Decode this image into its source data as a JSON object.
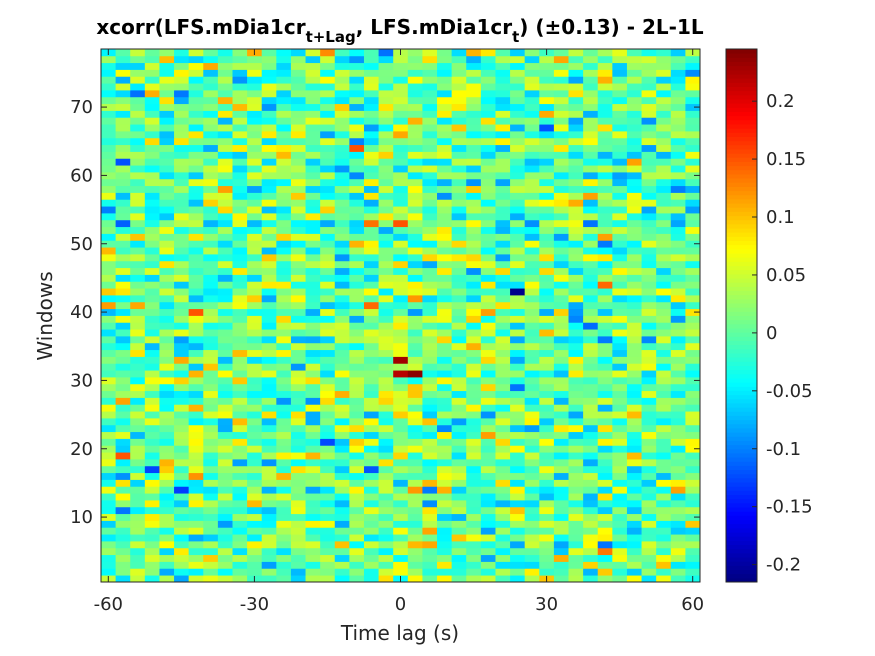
{
  "chart_data": {
    "type": "heatmap",
    "title": {
      "part1": "xcorr(LFS.mDia1cr",
      "sub1": "t+Lag",
      "part2": ", LFS.mDia1cr",
      "sub2": "t",
      "part3": ")  (±0.13) - 2L-1L"
    },
    "xlabel": "Time lag (s)",
    "ylabel": "Windows",
    "xlim": [
      -61.5,
      61.5
    ],
    "ylim": [
      0.5,
      78.5
    ],
    "x_step": 3,
    "x_ticks": [
      -60,
      -30,
      0,
      30,
      60
    ],
    "x_tick_labels": [
      "-60",
      "-30",
      "0",
      "30",
      "60"
    ],
    "y_ticks": [
      10,
      20,
      30,
      40,
      50,
      60,
      70
    ],
    "y_tick_labels": [
      "10",
      "20",
      "30",
      "40",
      "50",
      "60",
      "70"
    ],
    "colormap": "jet",
    "clim": [
      -0.215,
      0.245
    ],
    "colorbar_ticks": [
      -0.2,
      -0.15,
      -0.1,
      -0.05,
      0,
      0.05,
      0.1,
      0.15,
      0.2
    ],
    "colorbar_tick_labels": [
      "-0.2",
      "-0.15",
      "-0.1",
      "-0.05",
      "0",
      "0.05",
      "0.1",
      "0.15",
      "0.2"
    ],
    "cells_note": "41 lag columns (-60..60 step 3) x 78 window rows of noisy correlation values, mostly in -0.1..0.1, with higher values near lag 0 around windows 31-33 and 53-55",
    "highlights": [
      {
        "lag": 0,
        "window": 31,
        "value": 0.22
      },
      {
        "lag": 3,
        "window": 31,
        "value": 0.24
      },
      {
        "lag": 0,
        "window": 33,
        "value": 0.23
      },
      {
        "lag": 0,
        "window": 53,
        "value": 0.15
      },
      {
        "lag": 24,
        "window": 43,
        "value": -0.21
      },
      {
        "lag": 42,
        "window": 44,
        "value": 0.14
      },
      {
        "lag": -42,
        "window": 40,
        "value": 0.15
      },
      {
        "lag": -6,
        "window": 41,
        "value": 0.14
      }
    ]
  }
}
